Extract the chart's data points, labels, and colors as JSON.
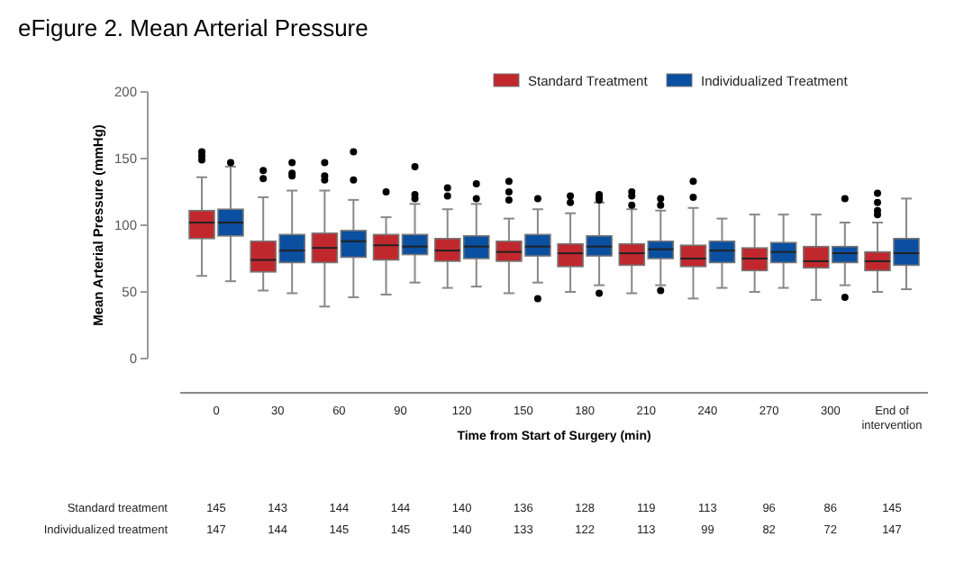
{
  "chart_data": {
    "type": "box",
    "title": "eFigure 2. Mean Arterial Pressure",
    "xlabel": "Time from Start of Surgery (min)",
    "ylabel": "Mean Arterial Pressure (mmHg)",
    "categories": [
      "0",
      "30",
      "60",
      "90",
      "120",
      "150",
      "180",
      "210",
      "240",
      "270",
      "300",
      "End of intervention"
    ],
    "ylim": [
      0,
      200
    ],
    "yticks": [
      0,
      50,
      100,
      150,
      200
    ],
    "grid": false,
    "legend": "top right",
    "series": [
      {
        "name": "Standard Treatment",
        "color": "#c0282d",
        "boxes": [
          {
            "low": 62,
            "q1": 90,
            "median": 102,
            "q3": 111,
            "high": 136,
            "outliers": [
              149,
              152,
              155
            ]
          },
          {
            "low": 51,
            "q1": 65,
            "median": 74,
            "q3": 88,
            "high": 121,
            "outliers": [
              135,
              141
            ]
          },
          {
            "low": 39,
            "q1": 72,
            "median": 83,
            "q3": 94,
            "high": 126,
            "outliers": [
              134,
              137,
              147
            ]
          },
          {
            "low": 48,
            "q1": 74,
            "median": 85,
            "q3": 93,
            "high": 106,
            "outliers": [
              125
            ]
          },
          {
            "low": 53,
            "q1": 73,
            "median": 81,
            "q3": 90,
            "high": 112,
            "outliers": [
              122,
              128
            ]
          },
          {
            "low": 49,
            "q1": 73,
            "median": 80,
            "q3": 88,
            "high": 105,
            "outliers": [
              119,
              125,
              133
            ]
          },
          {
            "low": 50,
            "q1": 69,
            "median": 79,
            "q3": 86,
            "high": 109,
            "outliers": [
              117,
              122
            ]
          },
          {
            "low": 49,
            "q1": 70,
            "median": 79,
            "q3": 86,
            "high": 112,
            "outliers": [
              115,
              122,
              125
            ]
          },
          {
            "low": 45,
            "q1": 69,
            "median": 75,
            "q3": 85,
            "high": 113,
            "outliers": [
              121,
              133
            ]
          },
          {
            "low": 50,
            "q1": 66,
            "median": 75,
            "q3": 83,
            "high": 108
          },
          {
            "low": 44,
            "q1": 68,
            "median": 73,
            "q3": 84,
            "high": 108
          },
          {
            "low": 50,
            "q1": 66,
            "median": 73,
            "q3": 80,
            "high": 102,
            "outliers": [
              108,
              111,
              117,
              124
            ]
          }
        ]
      },
      {
        "name": "Individualized Treatment",
        "color": "#0a4fa0",
        "boxes": [
          {
            "low": 58,
            "q1": 92,
            "median": 102,
            "q3": 112,
            "high": 144,
            "outliers": [
              147
            ]
          },
          {
            "low": 49,
            "q1": 72,
            "median": 81,
            "q3": 93,
            "high": 126,
            "outliers": [
              137,
              139,
              147
            ]
          },
          {
            "low": 46,
            "q1": 76,
            "median": 88,
            "q3": 96,
            "high": 119,
            "outliers": [
              134,
              155
            ]
          },
          {
            "low": 57,
            "q1": 78,
            "median": 84,
            "q3": 93,
            "high": 116,
            "outliers": [
              120,
              123,
              144
            ]
          },
          {
            "low": 54,
            "q1": 75,
            "median": 84,
            "q3": 92,
            "high": 116,
            "outliers": [
              120,
              131
            ]
          },
          {
            "low": 57,
            "q1": 77,
            "median": 84,
            "q3": 93,
            "high": 112,
            "outliers": [
              45,
              120
            ]
          },
          {
            "low": 55,
            "q1": 77,
            "median": 84,
            "q3": 92,
            "high": 117,
            "outliers": [
              49,
              119,
              121,
              123
            ]
          },
          {
            "low": 55,
            "q1": 75,
            "median": 82,
            "q3": 88,
            "high": 111,
            "outliers": [
              51,
              115,
              120
            ]
          },
          {
            "low": 53,
            "q1": 72,
            "median": 81,
            "q3": 88,
            "high": 105
          },
          {
            "low": 53,
            "q1": 72,
            "median": 80,
            "q3": 87,
            "high": 108
          },
          {
            "low": 55,
            "q1": 72,
            "median": 79,
            "q3": 84,
            "high": 102,
            "outliers": [
              46,
              120
            ]
          },
          {
            "low": 52,
            "q1": 70,
            "median": 79,
            "q3": 90,
            "high": 120
          }
        ]
      }
    ],
    "annotations": [
      "Standard treatment",
      "145",
      "143",
      "144",
      "144",
      "140",
      "136",
      "128",
      "119",
      "113",
      "96",
      "86",
      "145",
      "Individualized treatment",
      "147",
      "144",
      "145",
      "145",
      "140",
      "133",
      "122",
      "113",
      "99",
      "82",
      "72",
      "147"
    ]
  }
}
